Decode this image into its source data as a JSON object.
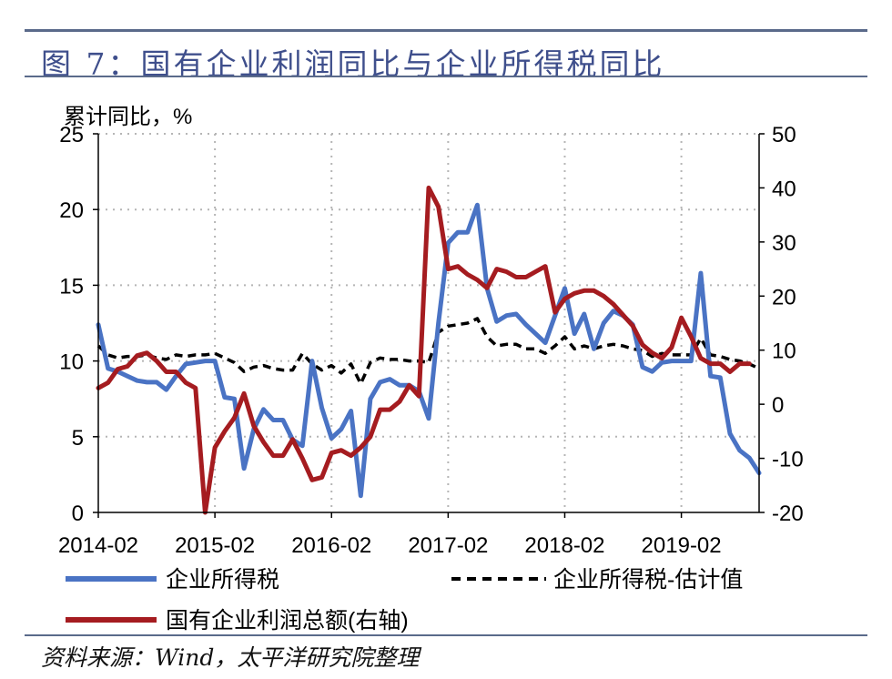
{
  "figure": {
    "title": "图 7：国有企业利润同比与企业所得税同比",
    "source": "资料来源：Wind，太平洋研究院整理"
  },
  "chart_data": {
    "type": "line",
    "unit_label": "累计同比，%",
    "x_ticks": [
      "2014-02",
      "2015-02",
      "2016-02",
      "2017-02",
      "2018-02",
      "2019-02"
    ],
    "x_start": "2014-02",
    "left_axis": {
      "ylim": [
        0,
        25
      ],
      "ticks": [
        0,
        5,
        10,
        15,
        20,
        25
      ]
    },
    "right_axis": {
      "ylim": [
        -20,
        50
      ],
      "ticks": [
        -20,
        -10,
        0,
        10,
        20,
        30,
        40,
        50
      ]
    },
    "grid": true,
    "legend_position": "bottom",
    "series": [
      {
        "name": "企业所得税",
        "axis": "left",
        "color": "#4a73c4",
        "style": "solid",
        "values": [
          12.4,
          9.5,
          9.3,
          9.0,
          8.7,
          8.6,
          8.6,
          8.1,
          9.0,
          9.8,
          9.9,
          10.0,
          10.0,
          7.6,
          7.5,
          2.9,
          5.5,
          6.8,
          6.1,
          6.1,
          4.8,
          4.4,
          10.0,
          6.9,
          4.9,
          5.5,
          6.7,
          1.1,
          7.5,
          8.6,
          8.8,
          8.4,
          8.4,
          8.0,
          6.2,
          12.5,
          17.8,
          18.5,
          18.5,
          20.3,
          14.8,
          12.6,
          13.0,
          13.1,
          12.4,
          11.8,
          11.2,
          13.0,
          14.8,
          11.8,
          13.1,
          10.8,
          12.5,
          13.3,
          13.0,
          12.4,
          9.6,
          9.3,
          9.9,
          10.0,
          10.0,
          10.0,
          15.8,
          9.0,
          8.9,
          5.2,
          4.1,
          3.6,
          2.6
        ]
      },
      {
        "name": "企业所得税-估计值",
        "axis": "left",
        "color": "#000000",
        "style": "dashed",
        "values": [
          11.0,
          10.4,
          10.2,
          10.3,
          10.3,
          10.4,
          10.2,
          10.1,
          10.4,
          10.3,
          10.4,
          10.4,
          10.5,
          10.2,
          9.9,
          9.3,
          9.6,
          9.7,
          9.5,
          9.4,
          9.4,
          10.5,
          9.8,
          9.4,
          9.7,
          9.2,
          9.8,
          8.5,
          9.9,
          10.2,
          10.1,
          10.1,
          10.0,
          10.0,
          9.9,
          11.9,
          12.3,
          12.4,
          12.5,
          12.8,
          11.6,
          11.0,
          11.1,
          11.1,
          10.8,
          10.8,
          10.5,
          11.0,
          11.6,
          10.8,
          11.0,
          10.8,
          11.0,
          11.1,
          11.0,
          10.8,
          10.7,
          10.3,
          10.5,
          10.4,
          10.4,
          10.4,
          11.5,
          10.4,
          10.3,
          10.1,
          10.0,
          9.8,
          9.5
        ]
      },
      {
        "name": "国有企业利润总额(右轴)",
        "axis": "right",
        "color": "#a51c20",
        "style": "solid",
        "values": [
          3.0,
          4.0,
          6.5,
          7.0,
          9.0,
          9.5,
          8.0,
          6.0,
          6.0,
          4.0,
          3.0,
          -20.0,
          -8.0,
          -5.0,
          -2.5,
          2.0,
          -4.0,
          -7.0,
          -9.5,
          -9.5,
          -6.5,
          -10.0,
          -14.0,
          -13.5,
          -9.0,
          -8.5,
          -9.5,
          -8.0,
          -6.0,
          -1.0,
          -1.0,
          0.5,
          3.5,
          1.5,
          40.0,
          36.5,
          25.0,
          25.5,
          24.0,
          23.0,
          21.5,
          25.0,
          24.5,
          23.5,
          23.5,
          24.5,
          25.5,
          17.0,
          19.5,
          20.5,
          21.0,
          21.0,
          20.0,
          18.5,
          16.5,
          14.5,
          11.0,
          9.5,
          8.5,
          10.5,
          16.0,
          12.5,
          8.5,
          7.5,
          7.5,
          6.0,
          7.5,
          7.5
        ]
      }
    ]
  }
}
